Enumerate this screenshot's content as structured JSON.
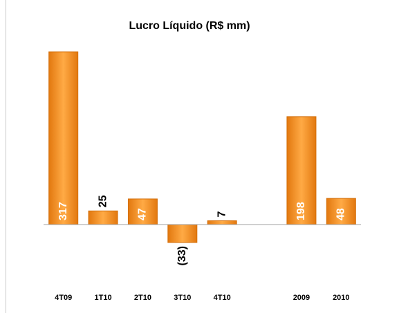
{
  "chart_data": {
    "type": "bar",
    "title": "Lucro Líquido (R$ mm)",
    "categories": [
      "4T09",
      "1T10",
      "2T10",
      "3T10",
      "4T10",
      null,
      "2009",
      "2010"
    ],
    "values": [
      317,
      25,
      47,
      -33,
      7,
      null,
      198,
      48
    ],
    "value_labels": [
      "317",
      "25",
      "47",
      "(33)",
      "7",
      null,
      "198",
      "48"
    ],
    "color": "#f5962a"
  }
}
